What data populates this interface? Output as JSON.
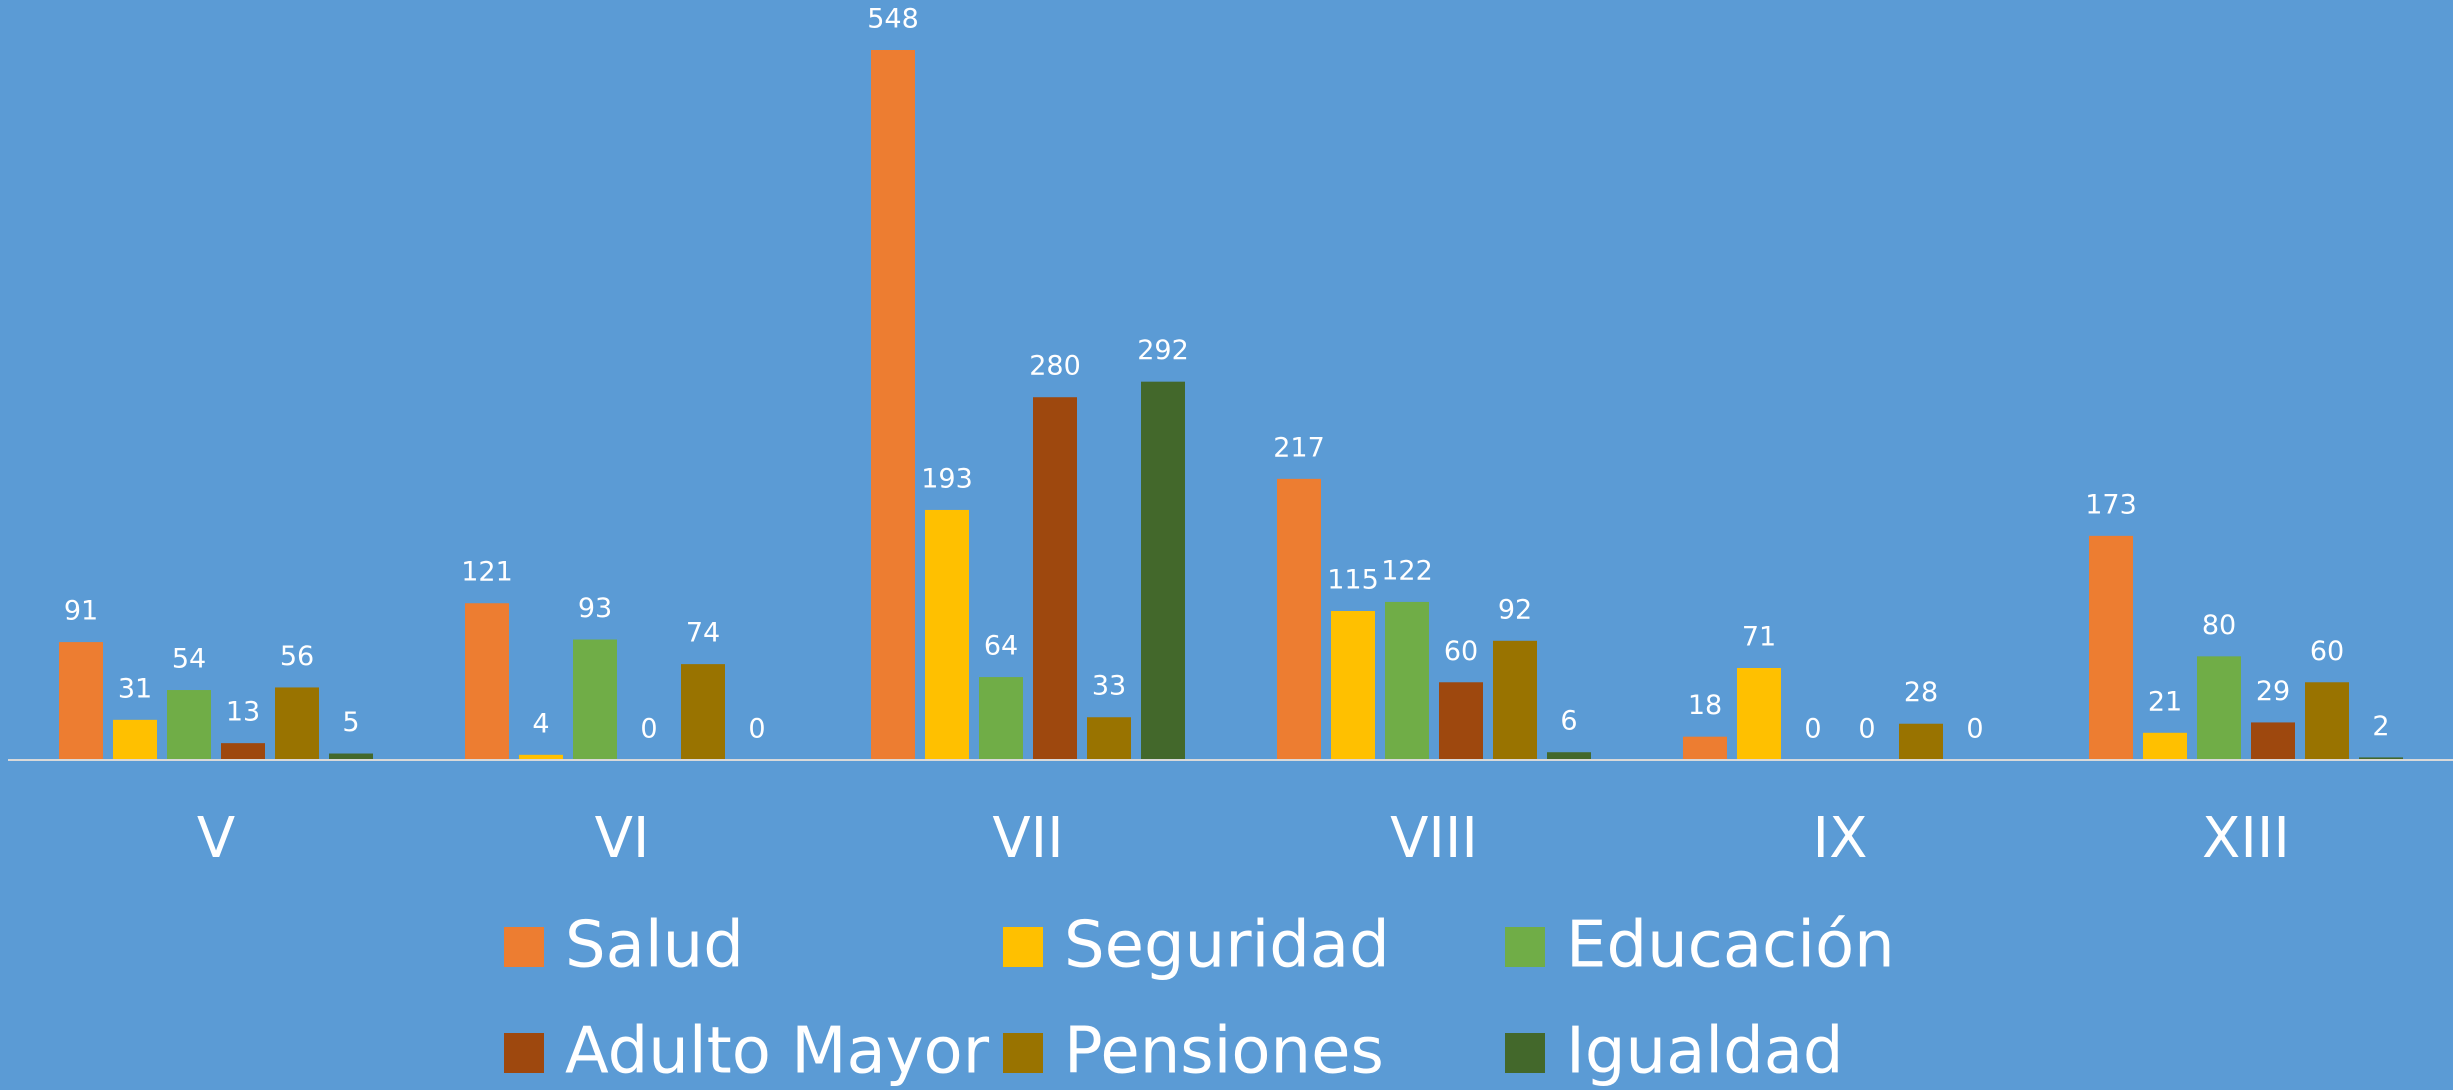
{
  "chart_data": {
    "type": "bar",
    "categories": [
      "V",
      "VI",
      "VII",
      "VIII",
      "IX",
      "XIII"
    ],
    "series": [
      {
        "name": "Salud",
        "color": "#ED7D31",
        "values": [
          91,
          121,
          548,
          217,
          18,
          173
        ]
      },
      {
        "name": "Seguridad",
        "color": "#FFC000",
        "values": [
          31,
          4,
          193,
          115,
          71,
          21
        ]
      },
      {
        "name": "Educación",
        "color": "#70AD47",
        "values": [
          54,
          93,
          64,
          122,
          0,
          80
        ]
      },
      {
        "name": "Adulto Mayor",
        "color": "#9E480E",
        "values": [
          13,
          0,
          280,
          60,
          0,
          29
        ]
      },
      {
        "name": "Pensiones",
        "color": "#997300",
        "values": [
          56,
          74,
          33,
          92,
          28,
          60
        ]
      },
      {
        "name": "Igualdad",
        "color": "#43682B",
        "values": [
          5,
          0,
          292,
          6,
          0,
          2
        ]
      }
    ],
    "legend": "bottom"
  }
}
